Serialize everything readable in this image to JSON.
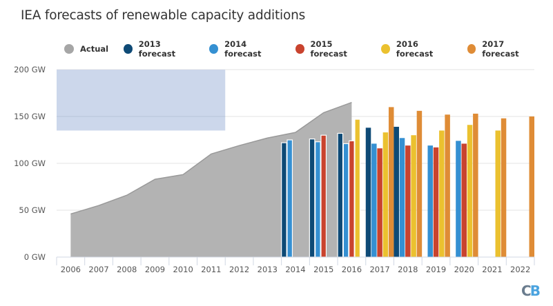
{
  "chart_data": {
    "type": "bar",
    "title": "IEA forecasts of renewable capacity additions",
    "xlabel": "",
    "ylabel": "",
    "ylim": [
      0,
      200
    ],
    "yticks": [
      0,
      50,
      100,
      150,
      200
    ],
    "ytick_labels": [
      "0 GW",
      "50 GW",
      "100 GW",
      "150 GW",
      "200 GW"
    ],
    "unit": "GW",
    "grid": true,
    "legend_position": "top",
    "categories": [
      "2006",
      "2007",
      "2008",
      "2009",
      "2010",
      "2011",
      "2012",
      "2013",
      "2014",
      "2015",
      "2016",
      "2017",
      "2018",
      "2019",
      "2020",
      "2021",
      "2022"
    ],
    "area_series": {
      "name": "Actual",
      "type": "area",
      "color": "#b3b3b3",
      "values": [
        46,
        55,
        66,
        83,
        88,
        110,
        119,
        127,
        133,
        154,
        165,
        null,
        null,
        null,
        null,
        null,
        null
      ]
    },
    "series": [
      {
        "name": "2013 forecast",
        "color": "#0e4a76",
        "values": [
          null,
          null,
          null,
          null,
          null,
          null,
          null,
          null,
          122,
          126,
          132,
          138,
          139,
          null,
          null,
          null,
          null
        ]
      },
      {
        "name": "2014 forecast",
        "color": "#3590d2",
        "values": [
          null,
          null,
          null,
          null,
          null,
          null,
          null,
          null,
          125,
          123,
          121,
          121,
          127,
          119,
          124,
          null,
          null
        ]
      },
      {
        "name": "2015 forecast",
        "color": "#c9432e",
        "values": [
          null,
          null,
          null,
          null,
          null,
          null,
          null,
          null,
          null,
          130,
          124,
          116,
          119,
          117,
          121,
          null,
          null
        ]
      },
      {
        "name": "2016 forecast",
        "color": "#ebc12f",
        "values": [
          null,
          null,
          null,
          null,
          null,
          null,
          null,
          null,
          null,
          null,
          147,
          133,
          130,
          135,
          141,
          135,
          null
        ]
      },
      {
        "name": "2017 forecast",
        "color": "#df8c36",
        "values": [
          null,
          null,
          null,
          null,
          null,
          null,
          null,
          null,
          null,
          null,
          null,
          160,
          156,
          152,
          153,
          148,
          150
        ]
      }
    ],
    "annotation_box": {
      "color": "#c9d5ea",
      "x_range": [
        "2006",
        "2011"
      ],
      "y_range": [
        135,
        200
      ]
    }
  },
  "legend": [
    {
      "label": "Actual",
      "color": "#a6a6a6"
    },
    {
      "label": "2013 forecast",
      "color": "#0e4a76"
    },
    {
      "label": "2014 forecast",
      "color": "#3590d2"
    },
    {
      "label": "2015 forecast",
      "color": "#c9432e"
    },
    {
      "label": "2016 forecast",
      "color": "#ebc12f"
    },
    {
      "label": "2017 forecast",
      "color": "#df8c36"
    }
  ],
  "logo": {
    "part1": "C",
    "part2": "B",
    "color1": "#6a7c8e",
    "color2": "#4aa3df"
  }
}
